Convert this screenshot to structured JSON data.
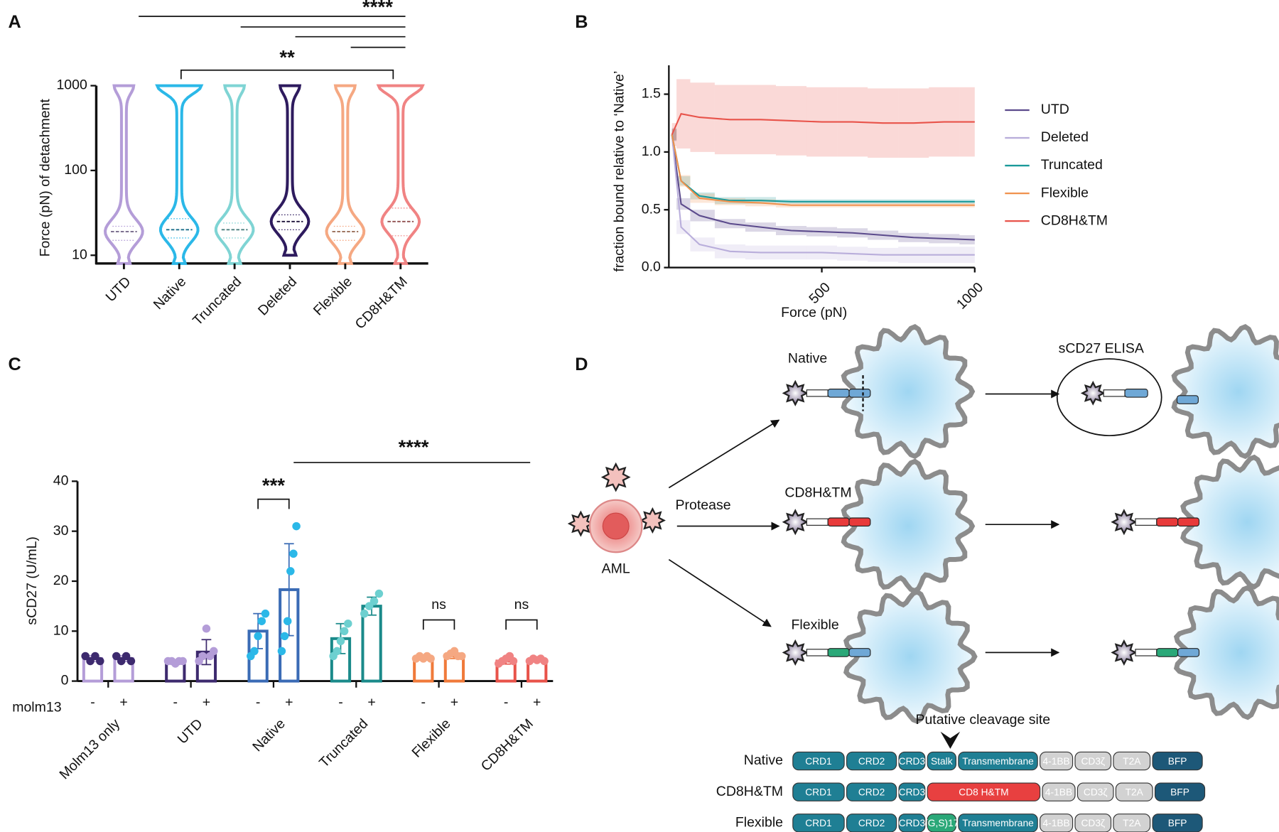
{
  "chart_data": [
    {
      "panel": "A",
      "type": "violin",
      "y_label": "Force (pN) of detachment",
      "categories": [
        "UTD",
        "Native",
        "Truncated",
        "Deleted",
        "Flexible",
        "CD8H&TM"
      ],
      "colors": [
        "#b49dd8",
        "#2bb8e8",
        "#7fd4d4",
        "#2e1b5e",
        "#f5a882",
        "#f08383"
      ],
      "medians": [
        19,
        20,
        20,
        25,
        19,
        25
      ],
      "q1": [
        15,
        16,
        16,
        20,
        15,
        17
      ],
      "q3": [
        22,
        27,
        24,
        30,
        22,
        36
      ],
      "min": [
        8,
        8,
        8,
        10,
        8,
        8
      ],
      "max": [
        1000,
        1000,
        1000,
        1000,
        1000,
        1000
      ],
      "ylim": [
        8,
        1000
      ],
      "yticks": [
        10,
        100,
        1000
      ],
      "log_y": true,
      "annotations": [
        "****",
        "**"
      ]
    },
    {
      "panel": "B",
      "type": "line",
      "x_label": "Force (pN)",
      "y_label": "fraction bound relative to ‘Native’",
      "x": [
        10,
        40,
        100,
        200,
        300,
        400,
        500,
        600,
        700,
        800,
        900,
        1000
      ],
      "xlim": [
        0,
        1000
      ],
      "xticks": [
        500,
        1000
      ],
      "ylim": [
        0,
        1.75
      ],
      "yticks": [
        {
          "value": 0,
          "label": "0.0"
        },
        {
          "value": 0.5,
          "label": "0.5"
        },
        {
          "value": 1,
          "label": "1.0"
        },
        {
          "value": 1.5,
          "label": "1.5"
        }
      ],
      "legend": "right",
      "series": [
        {
          "name": "UTD",
          "color": "#5b4a8c",
          "values": [
            1.15,
            0.55,
            0.45,
            0.38,
            0.35,
            0.32,
            0.31,
            0.3,
            0.28,
            0.26,
            0.25,
            0.24
          ],
          "errors": [
            0.05,
            0.05,
            0.05,
            0.04,
            0.04,
            0.04,
            0.04,
            0.04,
            0.04,
            0.04,
            0.04,
            0.04
          ]
        },
        {
          "name": "Deleted",
          "color": "#b9aedb",
          "values": [
            1.15,
            0.35,
            0.2,
            0.14,
            0.13,
            0.13,
            0.13,
            0.12,
            0.11,
            0.11,
            0.11,
            0.11
          ],
          "errors": [
            0.06,
            0.06,
            0.06,
            0.06,
            0.06,
            0.06,
            0.06,
            0.06,
            0.06,
            0.07,
            0.07,
            0.07
          ]
        },
        {
          "name": "Truncated",
          "color": "#1a9a9a",
          "values": [
            1.15,
            0.75,
            0.62,
            0.58,
            0.58,
            0.57,
            0.57,
            0.57,
            0.57,
            0.57,
            0.57,
            0.57
          ],
          "errors": [
            0.05,
            0.04,
            0.03,
            0.03,
            0.03,
            0.02,
            0.02,
            0.02,
            0.02,
            0.02,
            0.02,
            0.02
          ]
        },
        {
          "name": "Flexible",
          "color": "#f0914c",
          "values": [
            1.15,
            0.75,
            0.6,
            0.57,
            0.56,
            0.54,
            0.54,
            0.54,
            0.54,
            0.54,
            0.54,
            0.54
          ],
          "errors": [
            0.05,
            0.05,
            0.04,
            0.03,
            0.03,
            0.02,
            0.02,
            0.02,
            0.02,
            0.02,
            0.02,
            0.02
          ]
        },
        {
          "name": "CD8H&TM",
          "color": "#e8534a",
          "values": [
            1.15,
            1.33,
            1.3,
            1.28,
            1.28,
            1.27,
            1.26,
            1.26,
            1.25,
            1.25,
            1.26,
            1.26
          ],
          "errors": [
            0.1,
            0.3,
            0.3,
            0.3,
            0.3,
            0.3,
            0.3,
            0.3,
            0.3,
            0.3,
            0.3,
            0.3
          ]
        }
      ]
    },
    {
      "panel": "C",
      "type": "bar",
      "y_label": "sCD27 (U/mL)",
      "row_label": "molm13",
      "categories": [
        "Molm13 only",
        "UTD",
        "Native",
        "Truncated",
        "Flexible",
        "CD8H&TM"
      ],
      "colors": [
        "#b49dd8",
        "#3d2a6e",
        "#3a6bb5",
        "#1a8a8a",
        "#f07a3a",
        "#e8534a"
      ],
      "dot_colors": [
        "#3d2a6e",
        "#b49dd8",
        "#2bb8e8",
        "#6dd0d0",
        "#f5a882",
        "#f08383"
      ],
      "ylim": [
        0,
        40
      ],
      "yticks": [
        0,
        10,
        20,
        30,
        40
      ],
      "series": [
        {
          "name": "-",
          "values": [
            4.5,
            3.8,
            10,
            8.5,
            4.5,
            4
          ],
          "errors": [
            0.6,
            0.4,
            3.5,
            3,
            0.3,
            0.6
          ],
          "points": [
            [
              5,
              4,
              5,
              4
            ],
            [
              4,
              4,
              3.5,
              4,
              4
            ],
            [
              5,
              6,
              9,
              12,
              13.5
            ],
            [
              5,
              6,
              8,
              10,
              11.5
            ],
            [
              4.5,
              5,
              4.5,
              5,
              4.5
            ],
            [
              3.5,
              4,
              4.5,
              5,
              4
            ]
          ]
        },
        {
          "name": "+",
          "values": [
            4.5,
            5.8,
            18.3,
            15,
            5,
            4.2
          ],
          "errors": [
            0.6,
            2.5,
            9.2,
            1.8,
            0.5,
            0.3
          ],
          "points": [
            [
              5,
              4,
              5,
              4
            ],
            [
              4,
              5,
              10.5,
              5,
              6
            ],
            [
              6,
              9,
              12,
              22,
              25.5,
              31
            ],
            [
              13.5,
              15,
              16,
              17.5
            ],
            [
              5,
              5.5,
              6,
              5,
              5
            ],
            [
              4,
              4.5,
              4.2,
              4.5,
              4
            ]
          ]
        }
      ],
      "annotations": [
        "***",
        "****",
        "ns",
        "ns"
      ]
    }
  ],
  "diagram": {
    "panel": "D",
    "labels": {
      "native": "Native",
      "elisa": "sCD27 ELISA",
      "cd8": "CD8H&TM",
      "protease": "Protease",
      "aml": "AML",
      "flexible": "Flexible",
      "cleavage": "Putative cleavage site"
    },
    "constructs": [
      {
        "name": "Native",
        "segments": [
          {
            "label": "CRD1",
            "color": "#1f7f94"
          },
          {
            "label": "CRD2",
            "color": "#1f7f94"
          },
          {
            "label": "CRD3",
            "color": "#1f7f94"
          },
          {
            "label": "Stalk",
            "color": "#1f7f94"
          },
          {
            "label": "Transmembrane",
            "color": "#1f7f94"
          },
          {
            "label": "4-1BB",
            "color": "#d2d2d2"
          },
          {
            "label": "CD3ζ",
            "color": "#d2d2d2"
          },
          {
            "label": "T2A",
            "color": "#d2d2d2"
          },
          {
            "label": "BFP",
            "color": "#1d5878"
          }
        ]
      },
      {
        "name": "CD8H&TM",
        "segments": [
          {
            "label": "CRD1",
            "color": "#1f7f94"
          },
          {
            "label": "CRD2",
            "color": "#1f7f94"
          },
          {
            "label": "CRD3",
            "color": "#1f7f94"
          },
          {
            "label": "CD8 H&TM",
            "color": "#e84040"
          },
          {
            "label": "4-1BB",
            "color": "#d2d2d2"
          },
          {
            "label": "CD3ζ",
            "color": "#d2d2d2"
          },
          {
            "label": "T2A",
            "color": "#d2d2d2"
          },
          {
            "label": "BFP",
            "color": "#1d5878"
          }
        ]
      },
      {
        "name": "Flexible",
        "segments": [
          {
            "label": "CRD1",
            "color": "#1f7f94"
          },
          {
            "label": "CRD2",
            "color": "#1f7f94"
          },
          {
            "label": "CRD3",
            "color": "#1f7f94"
          },
          {
            "label": "(G,S)17",
            "color": "#2aa878"
          },
          {
            "label": "Transmembrane",
            "color": "#1f7f94"
          },
          {
            "label": "4-1BB",
            "color": "#d2d2d2"
          },
          {
            "label": "CD3ζ",
            "color": "#d2d2d2"
          },
          {
            "label": "T2A",
            "color": "#d2d2d2"
          },
          {
            "label": "BFP",
            "color": "#1d5878"
          }
        ]
      }
    ]
  }
}
